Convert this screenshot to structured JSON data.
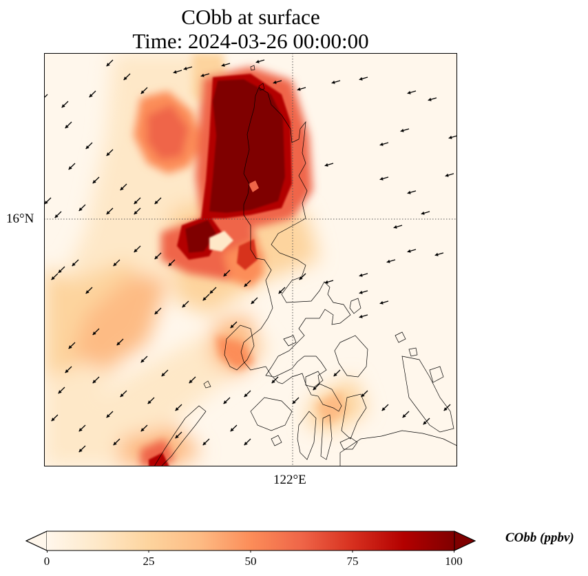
{
  "title": {
    "line1": "CObb at surface",
    "line2": "Time: 2024-03-26 00:00:00"
  },
  "axes": {
    "lat_label": "16°N",
    "lon_label": "122°E"
  },
  "colorbar": {
    "label": "CObb (ppbv)",
    "min": 0,
    "max": 100,
    "ticks": [
      "0",
      "25",
      "50",
      "75",
      "100"
    ],
    "extend": "both",
    "colormap": "OrRd",
    "stops": [
      "#fff7ec",
      "#fee8c8",
      "#fdd49e",
      "#fdbb84",
      "#fc8d59",
      "#ef6548",
      "#d7301f",
      "#b30000",
      "#7f0000"
    ]
  },
  "map": {
    "background": "#fff7ec",
    "grid_style": "dotted",
    "coastline_color": "#000000",
    "wind_arrow_color": "#000000",
    "plume_colors": {
      "extreme": "#7f0000",
      "high": "#b30000",
      "medium_high": "#d7301f",
      "medium": "#ef6548",
      "medium_low": "#fc8d59",
      "low": "#fdbb84",
      "faint": "#fdd49e",
      "trace": "#fee8c8"
    }
  }
}
